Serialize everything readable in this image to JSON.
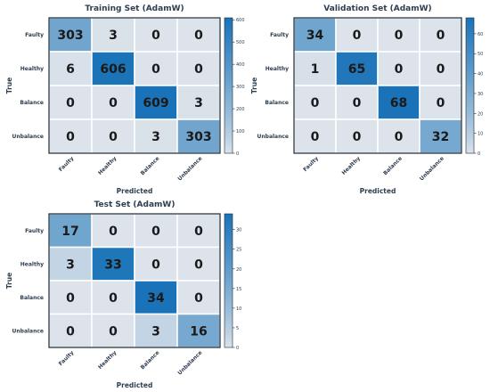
{
  "chart_data": [
    {
      "type": "heatmap",
      "title": "Training Set (AdamW)",
      "xlabel": "Predicted",
      "ylabel": "True",
      "x_categories": [
        "Faulty",
        "Healthy",
        "Balance",
        "Unbalance"
      ],
      "y_categories": [
        "Faulty",
        "Healthy",
        "Balance",
        "Unbalance"
      ],
      "values": [
        [
          303,
          3,
          0,
          0
        ],
        [
          6,
          606,
          0,
          0
        ],
        [
          0,
          0,
          609,
          3
        ],
        [
          0,
          0,
          3,
          303
        ]
      ],
      "colorbar": {
        "vmin": 0,
        "vmax": 609,
        "ticks": [
          0,
          100,
          200,
          300,
          400,
          500,
          600
        ]
      }
    },
    {
      "type": "heatmap",
      "title": "Validation Set (AdamW)",
      "xlabel": "Predicted",
      "ylabel": "True",
      "x_categories": [
        "Faulty",
        "Healthy",
        "Balance",
        "Unbalance"
      ],
      "y_categories": [
        "Faulty",
        "Healthy",
        "Balance",
        "Unbalance"
      ],
      "values": [
        [
          34,
          0,
          0,
          0
        ],
        [
          1,
          65,
          0,
          0
        ],
        [
          0,
          0,
          68,
          0
        ],
        [
          0,
          0,
          0,
          32
        ]
      ],
      "colorbar": {
        "vmin": 0,
        "vmax": 68,
        "ticks": [
          0,
          10,
          20,
          30,
          40,
          50,
          60
        ]
      }
    },
    {
      "type": "heatmap",
      "title": "Test Set (AdamW)",
      "xlabel": "Predicted",
      "ylabel": "True",
      "x_categories": [
        "Faulty",
        "Healthy",
        "Balance",
        "Unbalance"
      ],
      "y_categories": [
        "Faulty",
        "Healthy",
        "Balance",
        "Unbalance"
      ],
      "values": [
        [
          17,
          0,
          0,
          0
        ],
        [
          3,
          33,
          0,
          0
        ],
        [
          0,
          0,
          34,
          0
        ],
        [
          0,
          0,
          3,
          16
        ]
      ],
      "colorbar": {
        "vmin": 0,
        "vmax": 34,
        "ticks": [
          0,
          5,
          10,
          15,
          20,
          25,
          30
        ]
      }
    }
  ],
  "colors": {
    "low": "#dce3ea",
    "high": "#1a73b8",
    "text": "#1a1a1a",
    "label": "#2d3e50",
    "border": "#1c2833"
  }
}
